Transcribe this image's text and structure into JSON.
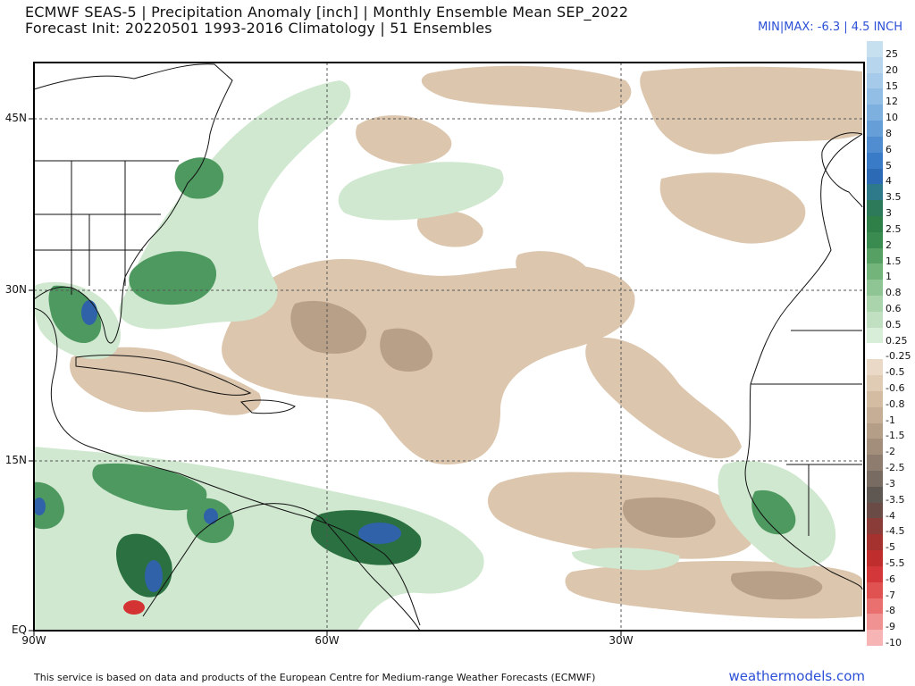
{
  "header": {
    "title_line1": "ECMWF SEAS-5 | Precipitation Anomaly [inch] | Monthly Ensemble Mean SEP_2022",
    "title_line2": "Forecast Init: 20220501     1993-2016 Climatology | 51 Ensembles",
    "minmax": "MIN|MAX: -6.3 | 4.5 INCH"
  },
  "map": {
    "lat_labels": [
      "45N",
      "30N",
      "15N",
      "EQ"
    ],
    "lon_labels": [
      "90W",
      "60W",
      "30W"
    ],
    "colors": {
      "frame": "#000000",
      "grid": "#555555",
      "coast": "#111111",
      "dry": "#dcc6ad",
      "dry_strong": "#b89f88",
      "dry_very": "#8d7b6c",
      "wet": "#cfe8cf",
      "wet_mid": "#8fc79a",
      "wet_strong": "#4e9960",
      "wet_very": "#2a7040",
      "blue": "#2f62a8",
      "red": "#d43333"
    }
  },
  "legend": [
    {
      "label": "25",
      "color": "#c7e0f0"
    },
    {
      "label": "20",
      "color": "#b7d6ee"
    },
    {
      "label": "15",
      "color": "#a6cbea"
    },
    {
      "label": "12",
      "color": "#92bde4"
    },
    {
      "label": "10",
      "color": "#7dafdf"
    },
    {
      "label": "8",
      "color": "#669fd8"
    },
    {
      "label": "6",
      "color": "#4f8dd0"
    },
    {
      "label": "5",
      "color": "#3a7bc7"
    },
    {
      "label": "4",
      "color": "#2c6ab6"
    },
    {
      "label": "3.5",
      "color": "#2f7a8a"
    },
    {
      "label": "3",
      "color": "#2d7a5a"
    },
    {
      "label": "2.5",
      "color": "#2f7f48"
    },
    {
      "label": "2",
      "color": "#3a8b50"
    },
    {
      "label": "1.5",
      "color": "#55a062"
    },
    {
      "label": "1",
      "color": "#72b47a"
    },
    {
      "label": "0.8",
      "color": "#8fc595"
    },
    {
      "label": "0.6",
      "color": "#a9d4ac"
    },
    {
      "label": "0.5",
      "color": "#c0e0c1"
    },
    {
      "label": "0.25",
      "color": "#d9eed9"
    },
    {
      "label": "-0.25",
      "color": "#ffffff"
    },
    {
      "label": "-0.5",
      "color": "#ead9c6"
    },
    {
      "label": "-0.6",
      "color": "#e0cbb4"
    },
    {
      "label": "-0.8",
      "color": "#d4bca3"
    },
    {
      "label": "-1",
      "color": "#c6ad95"
    },
    {
      "label": "-1.5",
      "color": "#b59e88"
    },
    {
      "label": "-2",
      "color": "#a38e7b"
    },
    {
      "label": "-2.5",
      "color": "#8e7d6e"
    },
    {
      "label": "-3",
      "color": "#786c62"
    },
    {
      "label": "-3.5",
      "color": "#5f5852"
    },
    {
      "label": "-4",
      "color": "#6b4b45"
    },
    {
      "label": "-4.5",
      "color": "#8a3d38"
    },
    {
      "label": "-5",
      "color": "#a5322e"
    },
    {
      "label": "-5.5",
      "color": "#bf2e2c"
    },
    {
      "label": "-6",
      "color": "#d4373a"
    },
    {
      "label": "-7",
      "color": "#e05252"
    },
    {
      "label": "-8",
      "color": "#ea7070"
    },
    {
      "label": "-9",
      "color": "#f19292"
    },
    {
      "label": "-10",
      "color": "#f7b4b4"
    }
  ],
  "footer": {
    "disclaimer": "This service is based on data and products of the European Centre for Medium-range Weather Forecasts (ECMWF)",
    "brand": "weathermodels.com"
  }
}
